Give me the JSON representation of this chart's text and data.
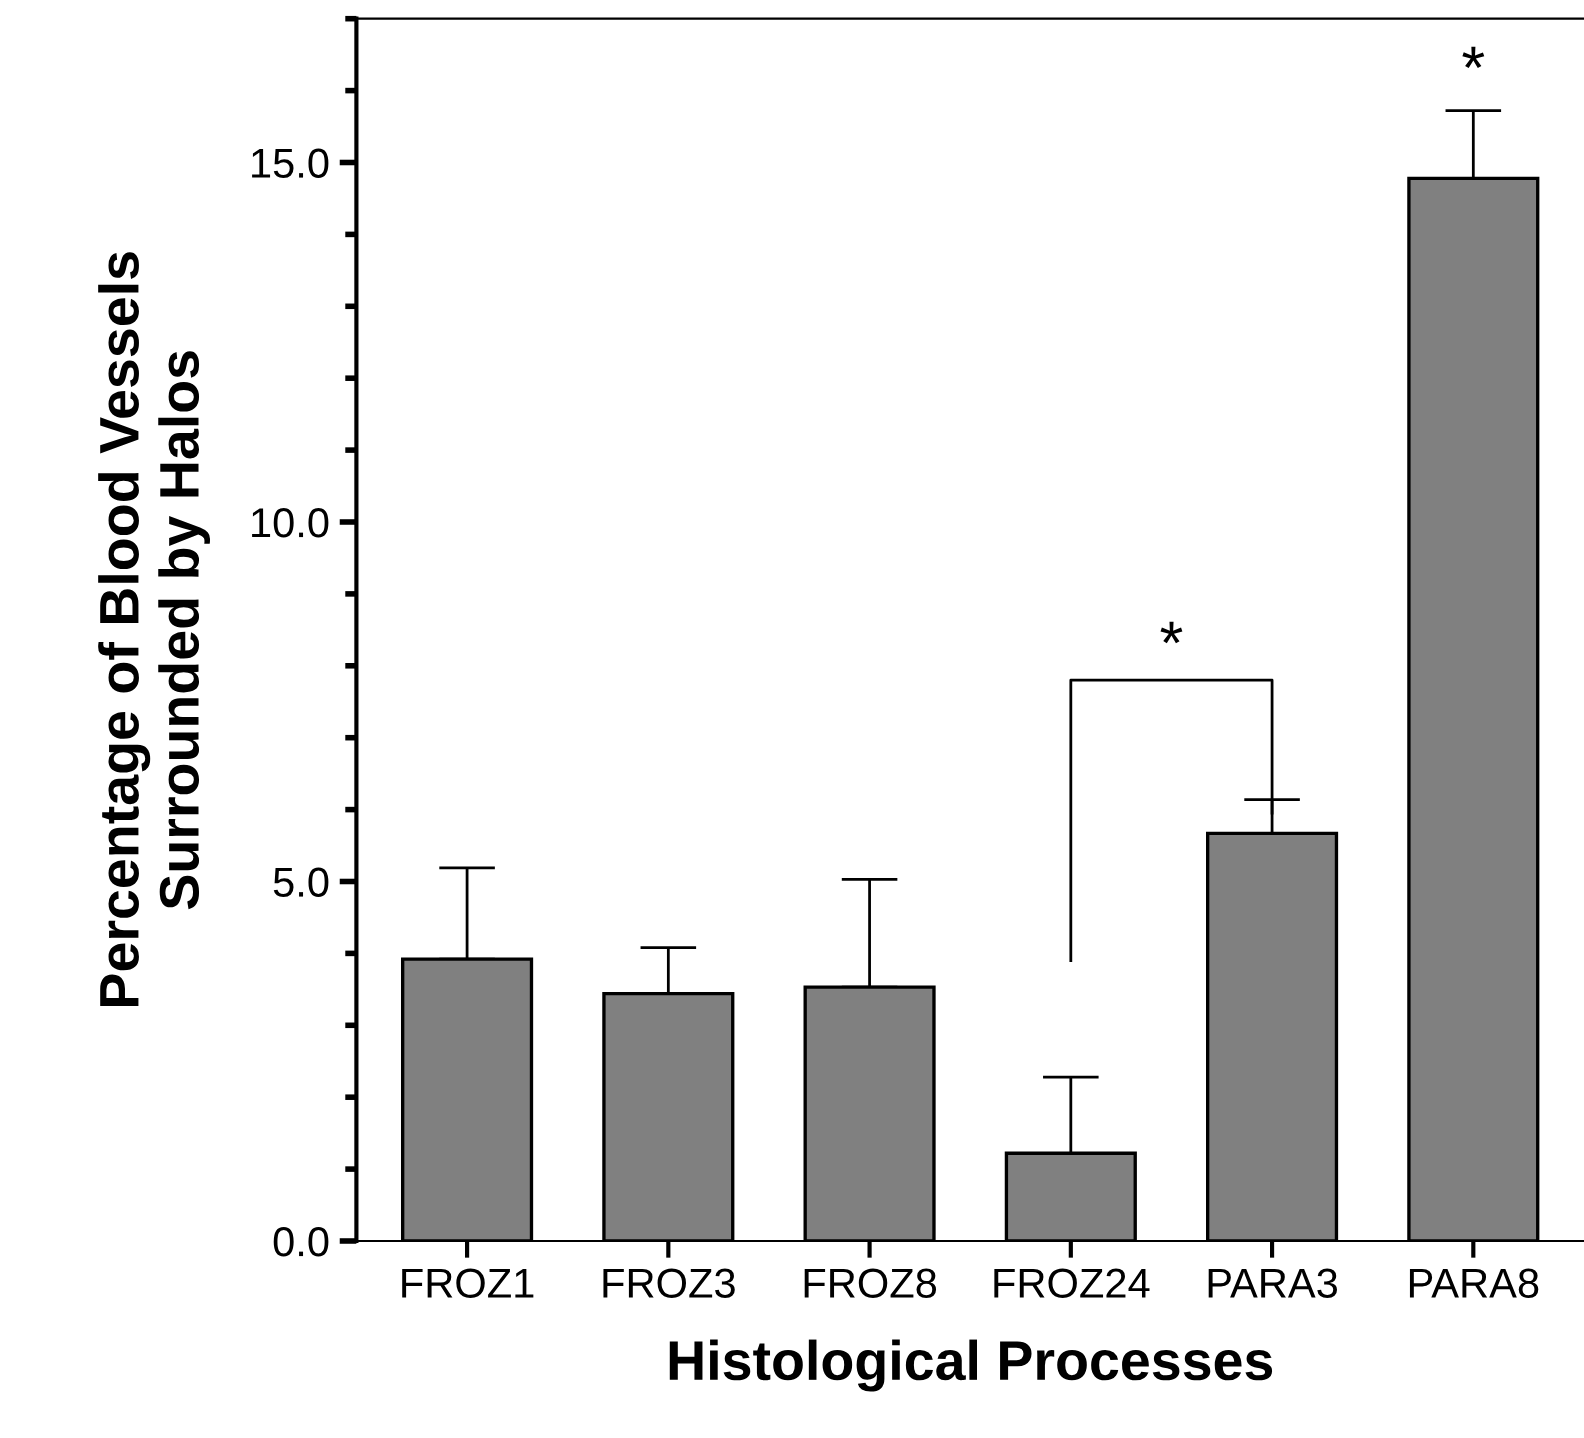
{
  "chart_data": {
    "type": "bar",
    "xlabel": "Histological Processes",
    "ylabel": "Percentage of Blood Vessels\nSurrounded by Halos",
    "categories": [
      "FROZ1",
      "FROZ3",
      "FROZ8",
      "FROZ24",
      "PARA3",
      "PARA8"
    ],
    "values": [
      3.92,
      3.44,
      3.53,
      1.22,
      5.67,
      14.78
    ],
    "errors": [
      [
        3.92,
        5.19
      ],
      [
        3.44,
        4.08
      ],
      [
        3.53,
        5.03
      ],
      [
        1.22,
        2.28
      ],
      [
        5.67,
        6.14
      ],
      [
        14.78,
        15.72
      ]
    ],
    "color": "#808080",
    "ylim": [
      0,
      17
    ],
    "yticks": [
      {
        "value": 0,
        "label": "0.0"
      },
      {
        "value": 5,
        "label": "5.0"
      },
      {
        "value": 10,
        "label": "10.0"
      },
      {
        "value": 15,
        "label": "15.0"
      }
    ],
    "grid": false,
    "annotations": [
      "*",
      "*"
    ]
  }
}
